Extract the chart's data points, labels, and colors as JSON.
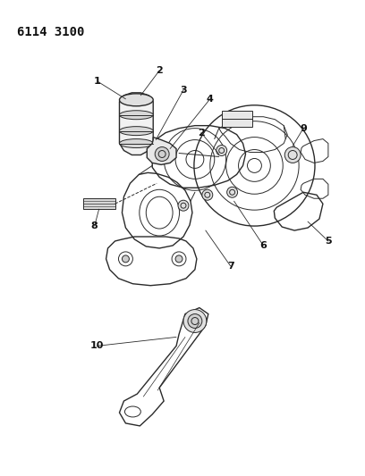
{
  "title": "6114 3100",
  "background_color": "#ffffff",
  "line_color": "#2a2a2a",
  "label_color": "#111111",
  "fig_width": 4.08,
  "fig_height": 5.33,
  "dpi": 100
}
